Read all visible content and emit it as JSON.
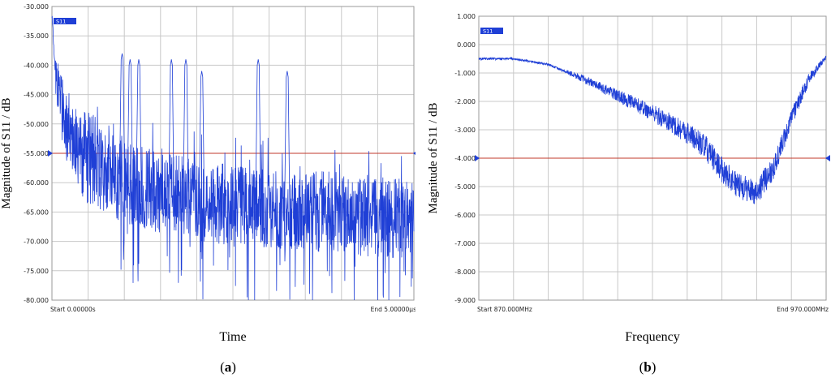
{
  "chart_data": [
    {
      "type": "line",
      "panel_label": "a",
      "xlabel": "Time",
      "ylabel": "Magnitude of S11 / dB",
      "legend": "S11",
      "start_label": "Start 0.00000s",
      "end_label": "End 5.00000µs",
      "ylim": [
        -80,
        -30
      ],
      "yticks": [
        "-30.000",
        "-35.000",
        "-40.000",
        "-45.000",
        "-50.000",
        "-55.000",
        "-60.000",
        "-65.000",
        "-70.000",
        "-75.000",
        "-80.000"
      ],
      "reference_level": -55,
      "grid": true,
      "x": [
        0,
        0.02,
        0.05,
        0.1,
        0.2,
        0.3,
        0.5,
        0.7,
        1.0,
        1.3,
        1.6,
        2.0,
        2.5,
        3.0,
        3.5,
        4.0,
        4.5,
        5.0
      ],
      "y": [
        -31,
        -36,
        -41,
        -45,
        -50,
        -53,
        -56,
        -58,
        -60,
        -61,
        -62,
        -63,
        -64,
        -64,
        -65,
        -65,
        -66,
        -66
      ],
      "peaks": [
        {
          "x": 0.97,
          "y": -38
        },
        {
          "x": 1.08,
          "y": -39
        },
        {
          "x": 1.2,
          "y": -39
        },
        {
          "x": 1.65,
          "y": -39
        },
        {
          "x": 1.85,
          "y": -39
        },
        {
          "x": 2.07,
          "y": -41
        },
        {
          "x": 2.85,
          "y": -39
        },
        {
          "x": 3.25,
          "y": -41
        }
      ]
    },
    {
      "type": "line",
      "panel_label": "b",
      "xlabel": "Frequency",
      "ylabel": "Magnitude of S11 / dB",
      "legend": "S11",
      "start_label": "Start 870.000MHz",
      "end_label": "End 970.000MHz",
      "xlim": [
        870,
        970
      ],
      "ylim": [
        -9,
        1
      ],
      "yticks": [
        "1.000",
        "0.000",
        "-1.000",
        "-2.000",
        "-3.000",
        "-4.000",
        "-5.000",
        "-6.000",
        "-7.000",
        "-8.000",
        "-9.000"
      ],
      "reference_level": -4,
      "grid": true,
      "x": [
        870,
        880,
        890,
        900,
        910,
        920,
        930,
        935,
        940,
        945,
        950,
        955,
        960,
        965,
        970
      ],
      "y": [
        -0.5,
        -0.5,
        -0.7,
        -1.2,
        -1.8,
        -2.4,
        -3.1,
        -3.6,
        -4.4,
        -5.0,
        -5.2,
        -4.3,
        -2.6,
        -1.2,
        -0.45
      ]
    }
  ]
}
